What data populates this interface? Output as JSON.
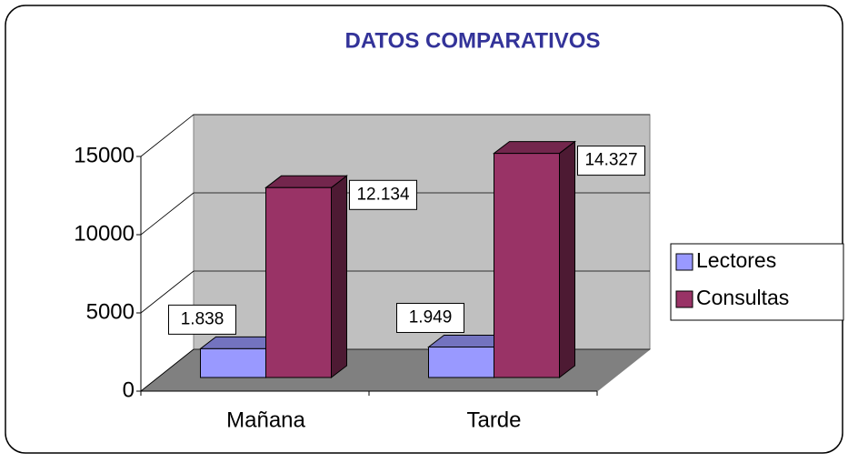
{
  "chart_data": {
    "type": "bar3d",
    "title": "DATOS COMPARATIVOS",
    "categories": [
      "Mañana",
      "Tarde"
    ],
    "series": [
      {
        "name": "Lectores",
        "color": "#9999ff",
        "values": [
          1838,
          1949
        ],
        "value_labels": [
          "1.838",
          "1.949"
        ]
      },
      {
        "name": "Consultas",
        "color": "#993366",
        "values": [
          12134,
          14327
        ],
        "value_labels": [
          "12.134",
          "14.327"
        ]
      }
    ],
    "ylim": [
      0,
      15000
    ],
    "yticks": [
      0,
      5000,
      10000,
      15000
    ],
    "grid": true,
    "legend": "right"
  }
}
